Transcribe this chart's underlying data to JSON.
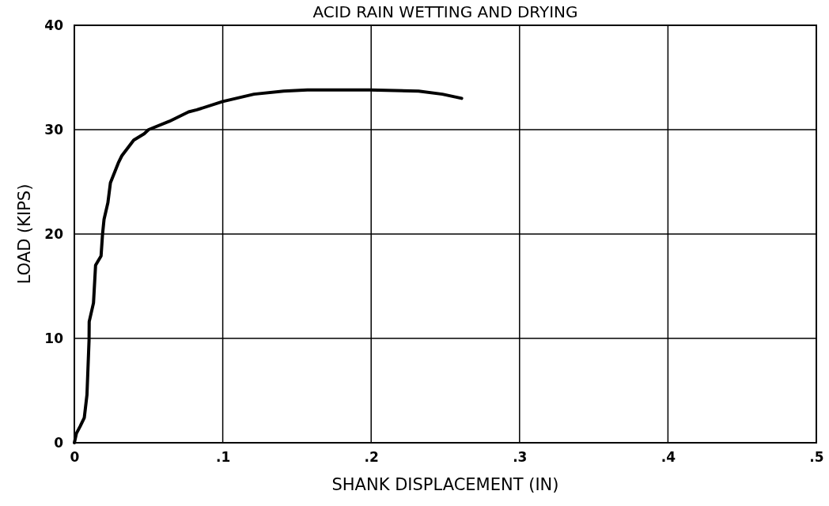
{
  "chart_data": {
    "type": "line",
    "title": "ACID RAIN WETTING AND DRYING",
    "xlabel": "SHANK DISPLACEMENT (IN)",
    "ylabel": "LOAD (KIPS)",
    "xlim": [
      0,
      0.5
    ],
    "ylim": [
      0,
      40
    ],
    "xticks": [
      {
        "value": 0,
        "label": "0"
      },
      {
        "value": 0.1,
        "label": ".1"
      },
      {
        "value": 0.2,
        "label": ".2"
      },
      {
        "value": 0.3,
        "label": ".3"
      },
      {
        "value": 0.4,
        "label": ".4"
      },
      {
        "value": 0.5,
        "label": ".5"
      }
    ],
    "yticks": [
      0,
      10,
      20,
      30,
      40
    ],
    "grid": true,
    "line_style": "solid",
    "marker": "none",
    "series": [
      {
        "color": "#000000",
        "x": [
          0,
          0.0014,
          0.004,
          0.0067,
          0.0085,
          0.0099,
          0.01,
          0.0129,
          0.0143,
          0.018,
          0.019,
          0.02,
          0.0226,
          0.0243,
          0.0296,
          0.032,
          0.04,
          0.047,
          0.05,
          0.064,
          0.077,
          0.0825,
          0.1,
          0.121,
          0.141,
          0.157,
          0.199,
          0.232,
          0.248,
          0.261
        ],
        "values": [
          0,
          0.9,
          1.6,
          2.4,
          4.6,
          9.8,
          11.6,
          13.4,
          17,
          17.9,
          20,
          21.4,
          23,
          24.9,
          26.8,
          27.5,
          29,
          29.6,
          30,
          30.8,
          31.7,
          31.9,
          32.7,
          33.4,
          33.7,
          33.8,
          33.8,
          33.7,
          33.4,
          33
        ]
      }
    ]
  }
}
